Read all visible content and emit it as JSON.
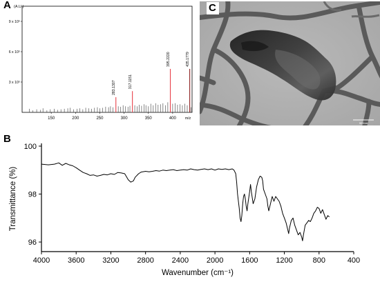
{
  "figure": {
    "panel_a_letter": "A",
    "panel_b_letter": "B",
    "panel_c_letter": "C"
  },
  "chart_data": [
    {
      "panel": "A",
      "type": "bar",
      "title": "",
      "xlabel": "m/z",
      "ylabel": "(A.U.)",
      "xlim": [
        90,
        440
      ],
      "ylim": [
        0,
        10.5
      ],
      "x_ticks": [
        150,
        200,
        250,
        300,
        350,
        400
      ],
      "y_ticks": [
        {
          "value": 3,
          "label": "3 x 10⁵"
        },
        {
          "value": 6,
          "label": "6 x 10⁵"
        },
        {
          "value": 9,
          "label": "9 x 10⁵"
        }
      ],
      "labeled_peaks": [
        {
          "x": 283.1307,
          "y": 1.5,
          "label": "283.1307",
          "color": "#e8414a"
        },
        {
          "x": 317.1151,
          "y": 2.1,
          "label": "317.1151",
          "color": "#e8414a"
        },
        {
          "x": 395.222,
          "y": 4.3,
          "label": "395.2220",
          "color": "#e8414a"
        },
        {
          "x": 435.1779,
          "y": 4.3,
          "label": "435.1779",
          "color": "#8b1a1a"
        }
      ],
      "noise_peaks": [
        [
          105,
          0.35
        ],
        [
          112,
          0.2
        ],
        [
          120,
          0.3
        ],
        [
          128,
          0.25
        ],
        [
          133,
          0.4
        ],
        [
          141,
          0.2
        ],
        [
          148,
          0.3
        ],
        [
          156,
          0.35
        ],
        [
          163,
          0.25
        ],
        [
          170,
          0.3
        ],
        [
          177,
          0.35
        ],
        [
          184,
          0.4
        ],
        [
          189,
          0.45
        ],
        [
          196,
          0.3
        ],
        [
          203,
          0.35
        ],
        [
          209,
          0.4
        ],
        [
          215,
          0.3
        ],
        [
          221,
          0.45
        ],
        [
          227,
          0.4
        ],
        [
          233,
          0.35
        ],
        [
          239,
          0.45
        ],
        [
          245,
          0.5
        ],
        [
          250,
          0.4
        ],
        [
          256,
          0.45
        ],
        [
          262,
          0.55
        ],
        [
          268,
          0.5
        ],
        [
          272,
          0.6
        ],
        [
          277,
          0.5
        ],
        [
          288,
          0.6
        ],
        [
          293,
          0.55
        ],
        [
          298,
          0.7
        ],
        [
          303,
          0.6
        ],
        [
          308,
          0.55
        ],
        [
          312,
          0.65
        ],
        [
          322,
          0.7
        ],
        [
          327,
          0.6
        ],
        [
          331,
          0.75
        ],
        [
          336,
          0.65
        ],
        [
          341,
          0.8
        ],
        [
          345,
          0.7
        ],
        [
          350,
          0.6
        ],
        [
          355,
          0.85
        ],
        [
          360,
          0.7
        ],
        [
          365,
          0.9
        ],
        [
          370,
          0.75
        ],
        [
          375,
          0.8
        ],
        [
          380,
          0.9
        ],
        [
          385,
          0.7
        ],
        [
          390,
          1.0
        ],
        [
          400,
          0.85
        ],
        [
          405,
          0.9
        ],
        [
          410,
          0.75
        ],
        [
          415,
          0.8
        ],
        [
          420,
          0.7
        ],
        [
          425,
          0.85
        ],
        [
          430,
          0.7
        ],
        [
          438,
          0.5
        ]
      ],
      "peak_color_noise": "#555555",
      "grid": false
    },
    {
      "panel": "B",
      "type": "line",
      "title": "",
      "xlabel": "Wavenumber (cm⁻¹)",
      "ylabel": "Transmittance (%)",
      "xlim": [
        4000,
        400
      ],
      "ylim": [
        95.6,
        100
      ],
      "x_ticks": [
        4000,
        3600,
        3200,
        2800,
        2400,
        2000,
        1600,
        1200,
        800,
        400
      ],
      "y_ticks": [
        96,
        98,
        100
      ],
      "grid": false,
      "series": [
        {
          "color": "#000000",
          "x": [
            4000,
            3920,
            3850,
            3800,
            3760,
            3720,
            3680,
            3640,
            3600,
            3560,
            3520,
            3480,
            3440,
            3400,
            3360,
            3320,
            3280,
            3240,
            3200,
            3160,
            3120,
            3080,
            3040,
            3000,
            2970,
            2940,
            2920,
            2880,
            2850,
            2800,
            2760,
            2720,
            2680,
            2640,
            2600,
            2560,
            2520,
            2480,
            2440,
            2400,
            2360,
            2320,
            2280,
            2240,
            2200,
            2160,
            2120,
            2080,
            2040,
            2000,
            1960,
            1920,
            1880,
            1840,
            1800,
            1780,
            1760,
            1750,
            1740,
            1720,
            1710,
            1700,
            1690,
            1680,
            1670,
            1660,
            1650,
            1640,
            1630,
            1620,
            1600,
            1590,
            1580,
            1560,
            1540,
            1520,
            1500,
            1480,
            1460,
            1450,
            1440,
            1420,
            1400,
            1390,
            1380,
            1360,
            1340,
            1320,
            1300,
            1280,
            1260,
            1240,
            1220,
            1200,
            1180,
            1160,
            1150,
            1140,
            1120,
            1100,
            1080,
            1060,
            1040,
            1020,
            1000,
            990,
            980,
            960,
            940,
            920,
            900,
            880,
            860,
            840,
            820,
            800,
            780,
            760,
            740,
            720,
            700,
            680
          ],
          "y": [
            99.25,
            99.22,
            99.25,
            99.3,
            99.2,
            99.28,
            99.22,
            99.18,
            99.1,
            99.0,
            98.9,
            98.85,
            98.78,
            98.8,
            98.75,
            98.78,
            98.82,
            98.8,
            98.85,
            98.82,
            98.9,
            98.88,
            98.85,
            98.6,
            98.5,
            98.55,
            98.7,
            98.85,
            98.92,
            98.95,
            98.93,
            98.95,
            98.98,
            98.96,
            99.0,
            98.98,
            99.0,
            99.02,
            98.98,
            99.0,
            99.02,
            99.0,
            99.05,
            99.02,
            99.0,
            99.03,
            99.05,
            99.02,
            99.05,
            99.0,
            99.05,
            99.03,
            99.05,
            99.02,
            99.05,
            99.0,
            98.85,
            98.5,
            98.0,
            97.4,
            97.0,
            96.85,
            97.1,
            97.6,
            97.9,
            98.0,
            97.8,
            97.5,
            97.3,
            97.6,
            98.1,
            98.4,
            98.1,
            97.6,
            97.8,
            98.3,
            98.6,
            98.75,
            98.7,
            98.55,
            98.2,
            98.0,
            97.8,
            97.5,
            97.3,
            97.6,
            97.9,
            97.7,
            97.9,
            97.8,
            97.7,
            97.5,
            97.2,
            97.0,
            96.8,
            96.5,
            96.35,
            96.6,
            96.9,
            97.0,
            96.7,
            96.5,
            96.3,
            96.4,
            96.2,
            96.05,
            96.3,
            96.7,
            96.8,
            96.9,
            96.85,
            97.0,
            97.2,
            97.3,
            97.45,
            97.4,
            97.2,
            97.35,
            97.15,
            96.95,
            97.1,
            97.05
          ]
        }
      ]
    }
  ],
  "panel_c_image": {
    "scale_bar": "500nm"
  }
}
